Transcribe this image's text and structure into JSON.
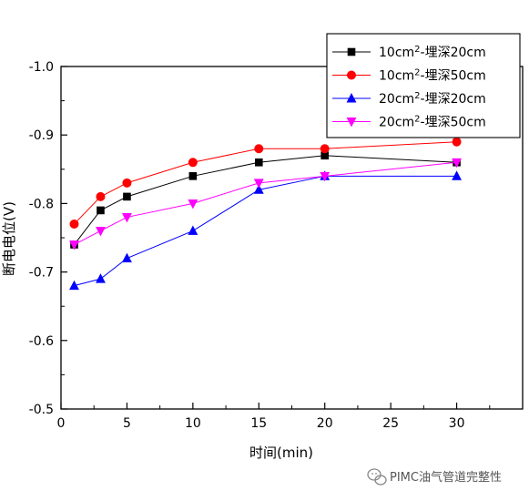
{
  "chart_data": {
    "type": "line",
    "x": [
      1,
      3,
      5,
      10,
      15,
      20,
      30
    ],
    "series": [
      {
        "name": "10cm²-埋深20cm",
        "color": "#000000",
        "marker": "square",
        "values": [
          -0.74,
          -0.79,
          -0.81,
          -0.84,
          -0.86,
          -0.87,
          -0.86
        ]
      },
      {
        "name": "10cm²-埋深50cm",
        "color": "#ff0000",
        "marker": "circle",
        "values": [
          -0.77,
          -0.81,
          -0.83,
          -0.86,
          -0.88,
          -0.88,
          -0.89
        ]
      },
      {
        "name": "20cm²-埋深20cm",
        "color": "#0000ff",
        "marker": "triangle-up",
        "values": [
          -0.68,
          -0.69,
          -0.72,
          -0.76,
          -0.82,
          -0.84,
          -0.84
        ]
      },
      {
        "name": "20cm²-埋深50cm",
        "color": "#ff00ff",
        "marker": "triangle-down",
        "values": [
          -0.74,
          -0.76,
          -0.78,
          -0.8,
          -0.83,
          -0.84,
          -0.86
        ]
      }
    ],
    "xlabel": "时间(min)",
    "ylabel": "断电电位(V)",
    "xlim": [
      0,
      35
    ],
    "ylim": [
      -0.5,
      -1.0
    ],
    "x_ticks": [
      "0",
      "5",
      "10",
      "15",
      "20",
      "25",
      "30"
    ],
    "x_tick_values": [
      0,
      5,
      10,
      15,
      20,
      25,
      30
    ],
    "y_ticks": [
      "-0.5",
      "-0.6",
      "-0.7",
      "-0.8",
      "-0.9",
      "-1.0"
    ],
    "y_tick_values": [
      -0.5,
      -0.6,
      -0.7,
      -0.8,
      -0.9,
      -1.0
    ],
    "y_axis_inverted": true,
    "grid": false,
    "legend_position": "top-right"
  },
  "watermark": {
    "text": "PIMC油气管道完整性",
    "icon": "wechat-icon"
  }
}
